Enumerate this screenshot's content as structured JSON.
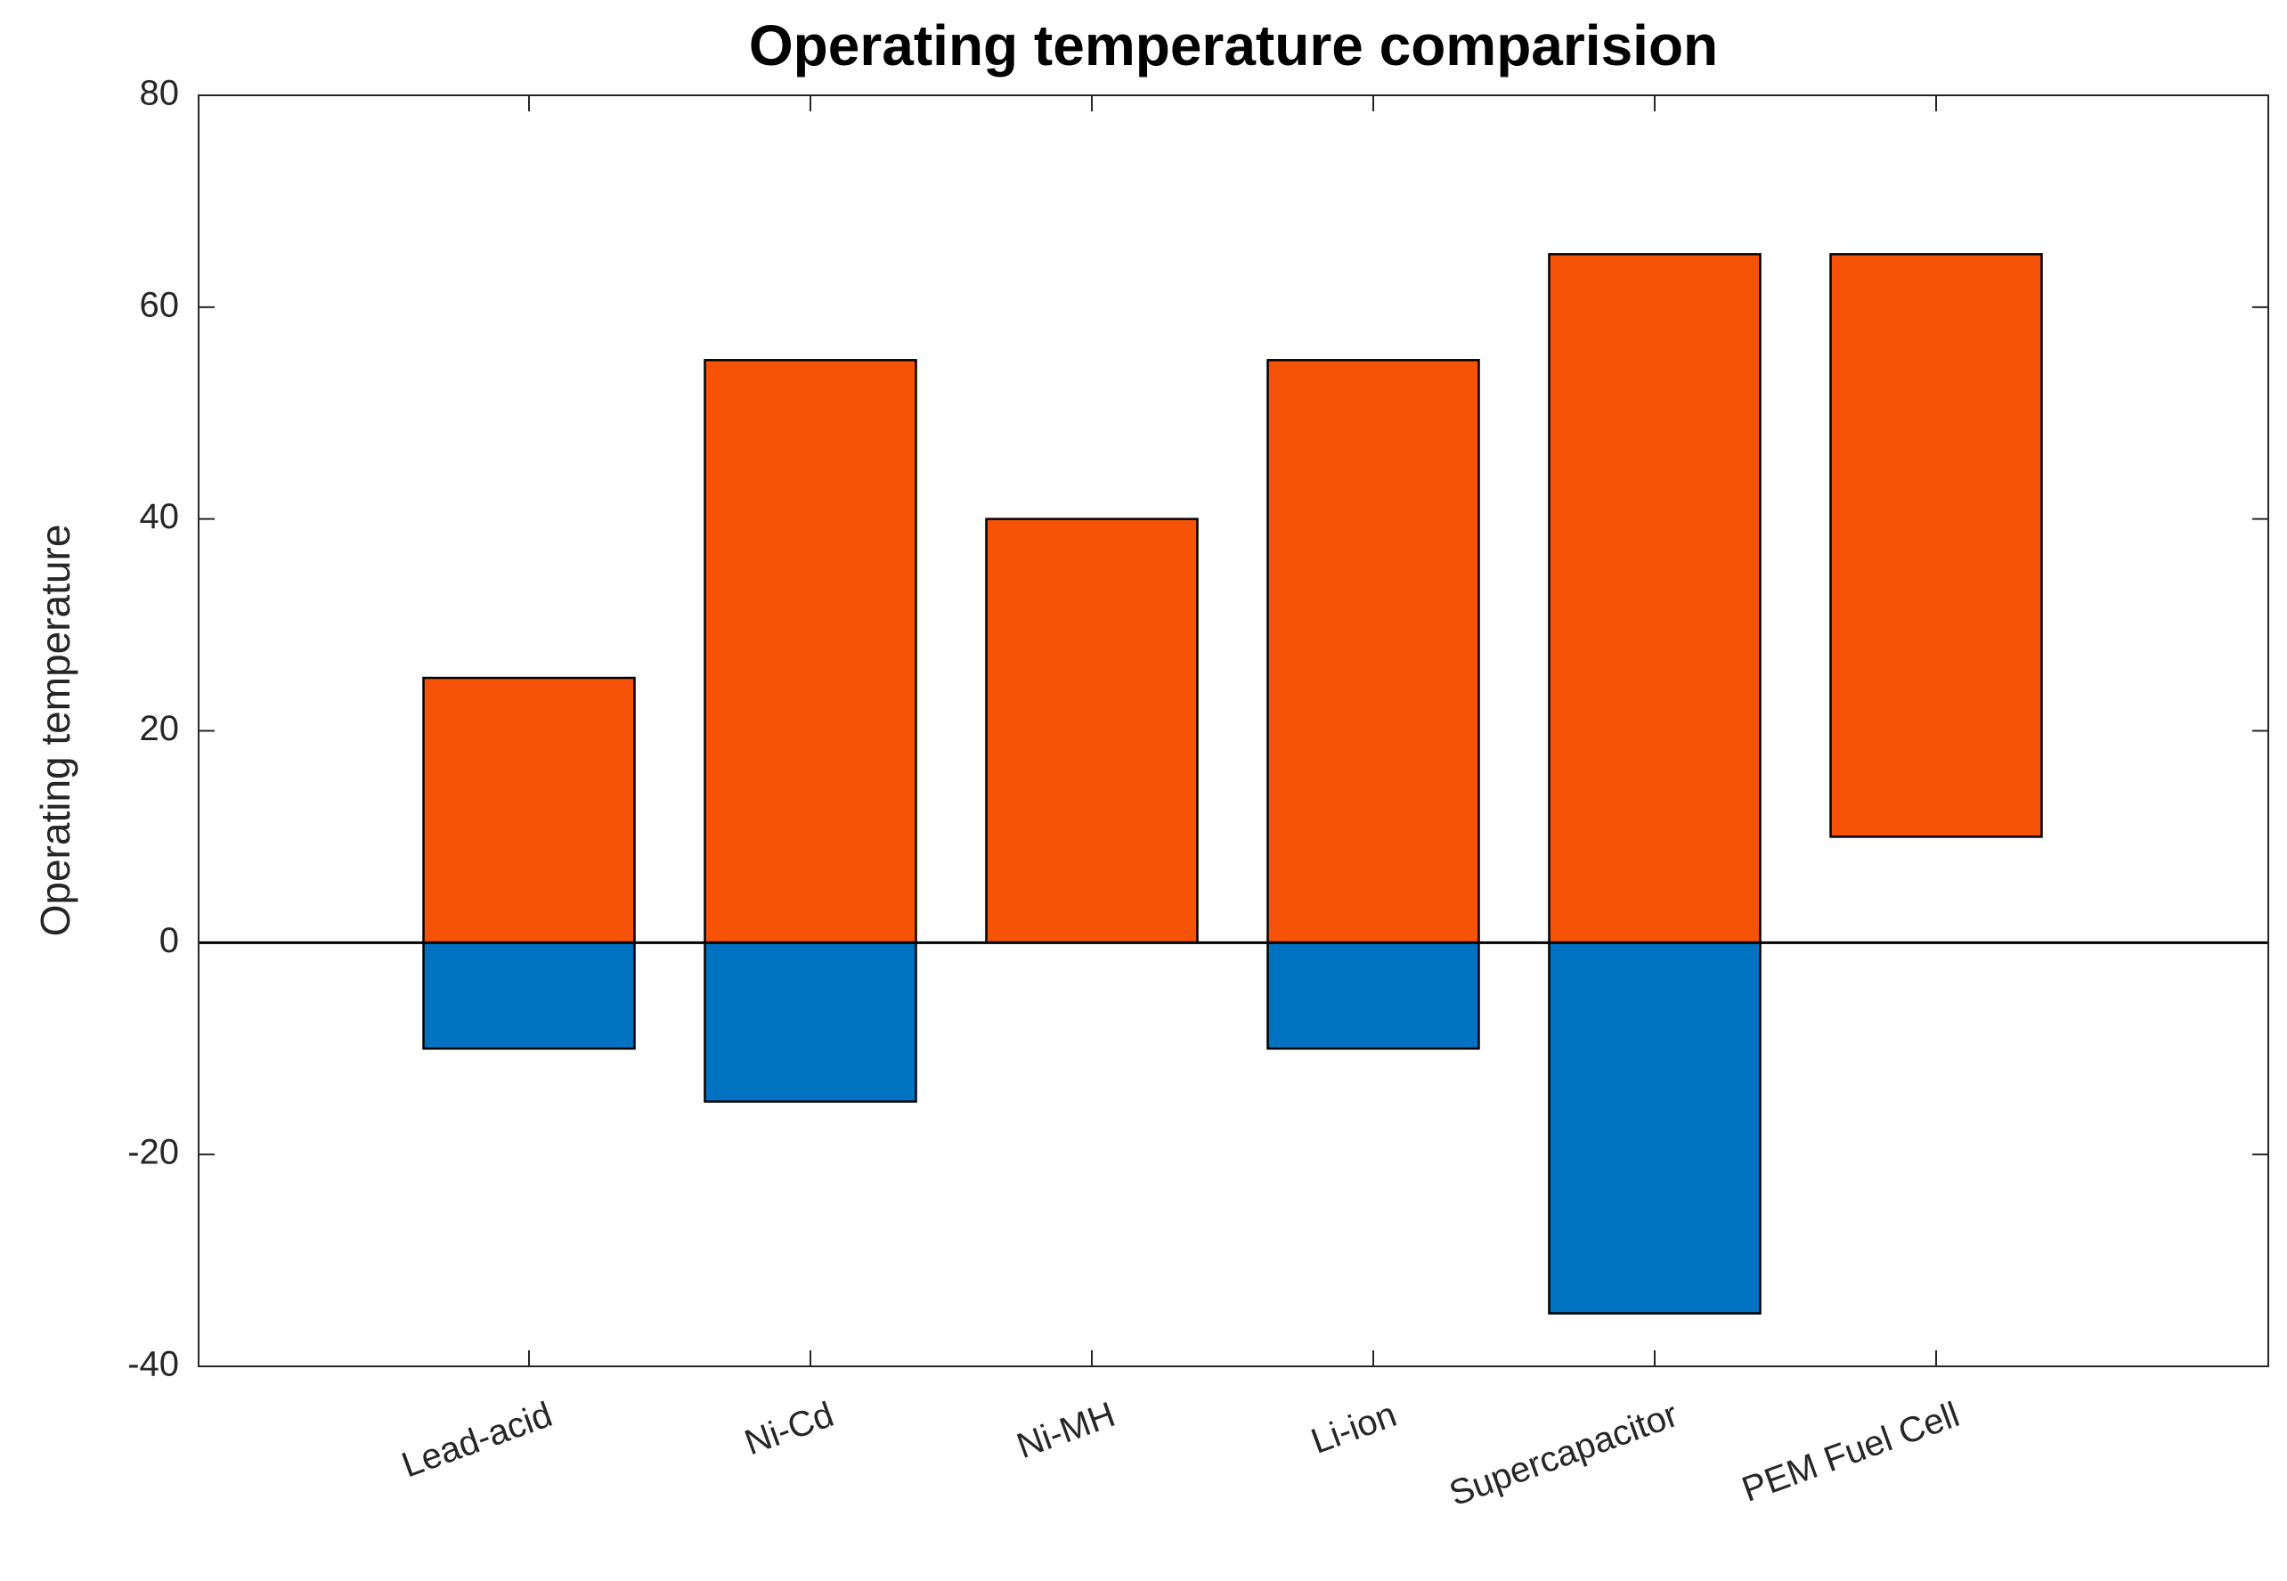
{
  "chart_data": {
    "type": "range_bar",
    "title": "Operating temperature comparision",
    "ylabel": "Operating temperature",
    "categories": [
      "Lead-acid",
      "Ni-Cd",
      "Ni-MH",
      "Li-ion",
      "Supercapacitor",
      "PEM Fuel Cell"
    ],
    "low": [
      -10,
      -15,
      0,
      -10,
      -35,
      10
    ],
    "high": [
      25,
      55,
      40,
      55,
      65,
      65
    ],
    "high_color": "#f65208",
    "low_color": "#0072c2",
    "ylim": [
      -40,
      80
    ],
    "yticks": [
      -40,
      -20,
      0,
      20,
      40,
      60,
      80
    ]
  }
}
